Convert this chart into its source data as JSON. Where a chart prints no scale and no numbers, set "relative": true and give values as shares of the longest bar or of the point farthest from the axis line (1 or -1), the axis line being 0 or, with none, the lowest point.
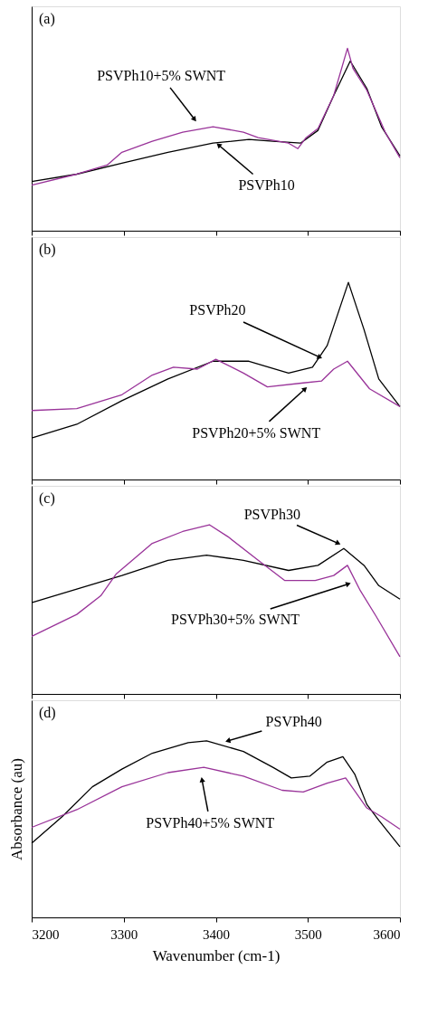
{
  "chart_data": [
    {
      "type": "line",
      "relative": true,
      "xlim": [
        3200,
        3600
      ],
      "xticks": [
        3200,
        3300,
        3400,
        3500,
        3600
      ],
      "tick_labels": false,
      "series": [
        {
          "color": "#000000",
          "x": [
            3200,
            3249,
            3298,
            3348,
            3397,
            3436,
            3462,
            3492,
            3511,
            3528,
            3546,
            3564,
            3580,
            3600
          ],
          "values": [
            0.27,
            0.31,
            0.37,
            0.43,
            0.48,
            0.5,
            0.49,
            0.48,
            0.55,
            0.74,
            0.93,
            0.78,
            0.57,
            0.41
          ]
        },
        {
          "color": "#993399",
          "x": [
            3200,
            3249,
            3282,
            3298,
            3331,
            3364,
            3397,
            3430,
            3446,
            3479,
            3489,
            3498,
            3511,
            3528,
            3543,
            3549,
            3564,
            3584,
            3600
          ],
          "values": [
            0.25,
            0.31,
            0.36,
            0.43,
            0.49,
            0.54,
            0.57,
            0.54,
            0.51,
            0.48,
            0.45,
            0.51,
            0.56,
            0.74,
            1.0,
            0.89,
            0.77,
            0.54,
            0.4
          ]
        }
      ],
      "annotations": [
        "(a)",
        {
          "text": "PSVPh10+5% SWNT",
          "x": 3377,
          "y": 0.61
        },
        {
          "text": "PSVPh10",
          "x": 3403,
          "y": 0.47
        }
      ]
    },
    {
      "type": "line",
      "relative": true,
      "xlim": [
        3200,
        3600
      ],
      "xticks": [
        3200,
        3300,
        3400,
        3500,
        3600
      ],
      "tick_labels": false,
      "series": [
        {
          "color": "#000000",
          "x": [
            3200,
            3249,
            3298,
            3348,
            3397,
            3436,
            3479,
            3505,
            3521,
            3544,
            3561,
            3577,
            3600
          ],
          "values": [
            0.21,
            0.28,
            0.4,
            0.51,
            0.6,
            0.6,
            0.54,
            0.57,
            0.68,
            1.0,
            0.76,
            0.51,
            0.37
          ]
        },
        {
          "color": "#993399",
          "x": [
            3200,
            3249,
            3298,
            3331,
            3354,
            3380,
            3400,
            3430,
            3456,
            3495,
            3515,
            3528,
            3543,
            3567,
            3600
          ],
          "values": [
            0.35,
            0.36,
            0.43,
            0.53,
            0.57,
            0.56,
            0.61,
            0.54,
            0.47,
            0.49,
            0.5,
            0.56,
            0.6,
            0.46,
            0.37
          ]
        }
      ],
      "annotations": [
        "(b)",
        {
          "text": "PSVPh20",
          "x": 3513,
          "y": 0.62
        },
        {
          "text": "PSVPh20+5% SWNT",
          "x": 3497,
          "y": 0.46
        }
      ]
    },
    {
      "type": "line",
      "relative": true,
      "xlim": [
        3200,
        3600
      ],
      "xticks": [
        3200,
        3300,
        3400,
        3500,
        3600
      ],
      "tick_labels": false,
      "series": [
        {
          "color": "#000000",
          "x": [
            3200,
            3249,
            3298,
            3348,
            3390,
            3430,
            3479,
            3511,
            3539,
            3561,
            3577,
            3600
          ],
          "values": [
            0.54,
            0.62,
            0.7,
            0.79,
            0.82,
            0.79,
            0.73,
            0.76,
            0.86,
            0.76,
            0.64,
            0.56
          ]
        },
        {
          "color": "#993399",
          "x": [
            3200,
            3249,
            3275,
            3292,
            3331,
            3364,
            3393,
            3413,
            3446,
            3475,
            3508,
            3528,
            3543,
            3557,
            3574,
            3600
          ],
          "values": [
            0.34,
            0.47,
            0.58,
            0.71,
            0.89,
            0.96,
            1.0,
            0.93,
            0.79,
            0.67,
            0.67,
            0.7,
            0.76,
            0.61,
            0.46,
            0.22
          ]
        }
      ],
      "annotations": [
        "(c)",
        {
          "text": "PSVPh30",
          "x": 3533,
          "y": 0.89
        },
        {
          "text": "PSVPh30+5% SWNT",
          "x": 3544,
          "y": 0.65
        }
      ]
    },
    {
      "type": "line",
      "relative": true,
      "xlim": [
        3200,
        3600
      ],
      "xticks": [
        3200,
        3300,
        3400,
        3500,
        3600
      ],
      "tick_labels": "x",
      "xlabel": "Wavenumber (cm-1)",
      "ylabel": "Absorbance (au)",
      "series": [
        {
          "color": "#000000",
          "x": [
            3200,
            3233,
            3266,
            3298,
            3331,
            3370,
            3390,
            3430,
            3462,
            3482,
            3502,
            3521,
            3538,
            3551,
            3564,
            3577,
            3600
          ],
          "values": [
            0.42,
            0.57,
            0.74,
            0.84,
            0.93,
            0.99,
            1.0,
            0.94,
            0.85,
            0.79,
            0.8,
            0.88,
            0.91,
            0.81,
            0.64,
            0.55,
            0.4
          ]
        },
        {
          "color": "#993399",
          "x": [
            3200,
            3249,
            3298,
            3348,
            3387,
            3430,
            3472,
            3495,
            3521,
            3541,
            3564,
            3580,
            3600
          ],
          "values": [
            0.51,
            0.61,
            0.74,
            0.82,
            0.85,
            0.8,
            0.72,
            0.71,
            0.76,
            0.79,
            0.62,
            0.57,
            0.5
          ]
        }
      ],
      "annotations": [
        "(d)",
        {
          "text": "PSVPh40",
          "x": 3413,
          "y": 1.0
        },
        {
          "text": "PSVPh40+5% SWNT",
          "x": 3385,
          "y": 0.78
        }
      ]
    }
  ]
}
